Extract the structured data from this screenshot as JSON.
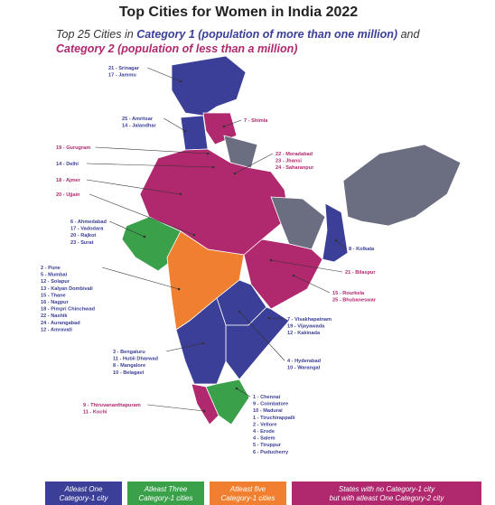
{
  "title": "Top Cities for Women in India 2022",
  "subtitle": {
    "parts": [
      "Top 25 Cities in ",
      "Category 1 (population of more than one million)",
      " and",
      "Category 2 (population of less than a million)"
    ]
  },
  "labels": [
    {
      "lines": [
        "21 - Srinagar",
        "17 - Jammu"
      ]
    },
    {
      "lines": [
        "25 - Amritsar",
        "14 - Jalandhar"
      ]
    },
    {
      "lines": [
        "7 - Shimla"
      ]
    },
    {
      "lines": [
        "19 - Gurugram"
      ]
    },
    {
      "lines": [
        "14 - Delhi"
      ]
    },
    {
      "lines": [
        "18 - Ajmer"
      ]
    },
    {
      "lines": [
        "20 - Ujjain"
      ]
    },
    {
      "lines": [
        "22 - Moradabad",
        "23 - Jhansi",
        "24 - Saharanpur"
      ]
    },
    {
      "lines": [
        "6 - Ahmedabad",
        "17 - Vadodara",
        "20 - Rajkot",
        "23 - Surat"
      ]
    },
    {
      "lines": [
        "8 - Kolkata"
      ]
    },
    {
      "lines": [
        "2 - Pune",
        "5 - Mumbai",
        "12 - Solapur",
        "13 - Kalyan Dombivali",
        "15 - Thane",
        "16 - Nagpur",
        "18 - Pimpri Chinchwad",
        "22 - Nashik",
        "24 - Aurangabad",
        "12 - Amravati"
      ]
    },
    {
      "lines": [
        "21 - Bilaspur"
      ]
    },
    {
      "lines": [
        "15 - Rourkela",
        "25 - Bhubaneswar"
      ]
    },
    {
      "lines": [
        "7 - Visakhapatnam",
        "19 - Vijayawada",
        "12 - Kakinada"
      ]
    },
    {
      "lines": [
        "4 - Hyderabad",
        "10 - Warangal"
      ]
    },
    {
      "lines": [
        "3 - Bengaluru",
        "11 - Hubli Dharwad",
        "8 - Mangalore",
        "10 - Belagavi"
      ]
    },
    {
      "lines": [
        "9 - Thiruvananthapuram",
        "11 - Kochi"
      ]
    },
    {
      "lines": [
        "1 - Chennai",
        "9 - Coimbatore",
        "10 - Madurai",
        "1 - Tiruchirappalli",
        "2 - Vellore",
        "4 - Erode",
        "4 - Salem",
        "5 - Tiruppur",
        "6 - Puducherry"
      ]
    }
  ],
  "legend": [
    {
      "lines": [
        "Atleast One",
        "Category-1 city"
      ]
    },
    {
      "lines": [
        "Atleast Three",
        "Category-1 cities"
      ]
    },
    {
      "lines": [
        "Atleast five",
        "Category-1 cities"
      ]
    },
    {
      "lines": [
        "States with no Category-1 city",
        "but with atleast One Category-2 city"
      ]
    }
  ]
}
